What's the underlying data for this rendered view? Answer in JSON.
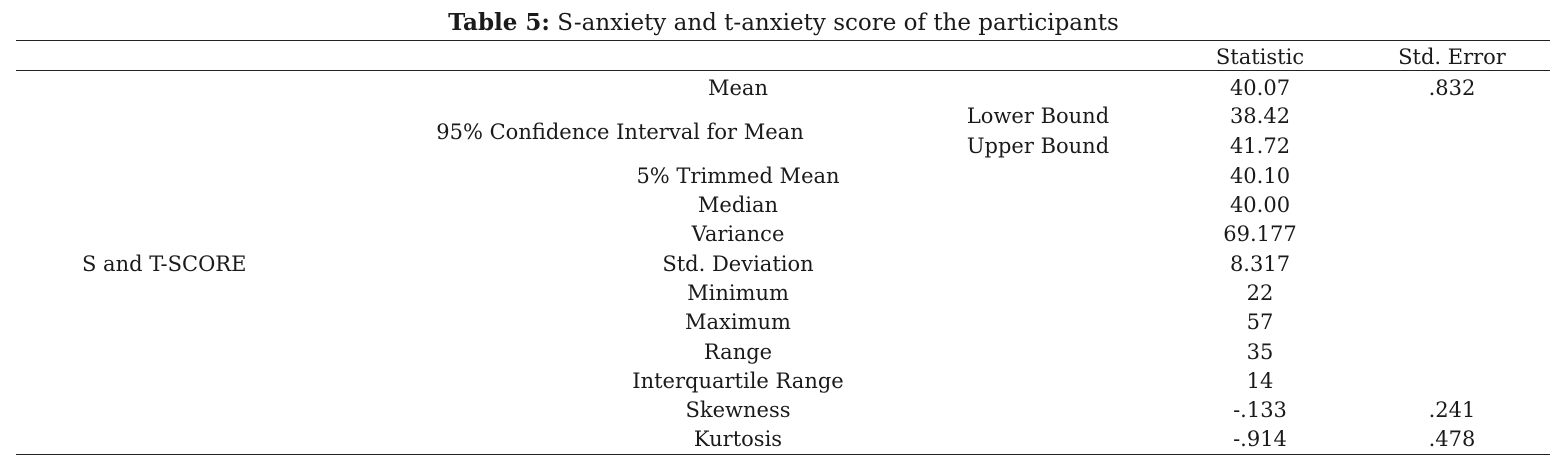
{
  "caption": {
    "label": "Table 5:",
    "text": " S-anxiety and t-anxiety score of the participants"
  },
  "header": {
    "statistic": "Statistic",
    "std_error": "Std. Error"
  },
  "group_label": "S and T-SCORE",
  "rows": {
    "mean": {
      "label": "Mean",
      "statistic": "40.07",
      "std_error": ".832"
    },
    "ci": {
      "label": "95% Confidence Interval for Mean",
      "lower_label": "Lower Bound",
      "lower_value": "38.42",
      "upper_label": "Upper Bound",
      "upper_value": "41.72"
    },
    "trimmed_mean": {
      "label": "5% Trimmed Mean",
      "statistic": "40.10"
    },
    "median": {
      "label": "Median",
      "statistic": "40.00"
    },
    "variance": {
      "label": "Variance",
      "statistic": "69.177"
    },
    "std_deviation": {
      "label": "Std. Deviation",
      "statistic": "8.317"
    },
    "minimum": {
      "label": "Minimum",
      "statistic": "22"
    },
    "maximum": {
      "label": "Maximum",
      "statistic": "57"
    },
    "range": {
      "label": "Range",
      "statistic": "35"
    },
    "iqr": {
      "label": "Interquartile Range",
      "statistic": "14"
    },
    "skewness": {
      "label": "Skewness",
      "statistic": "-.133",
      "std_error": ".241"
    },
    "kurtosis": {
      "label": "Kurtosis",
      "statistic": "-.914",
      "std_error": ".478"
    }
  }
}
